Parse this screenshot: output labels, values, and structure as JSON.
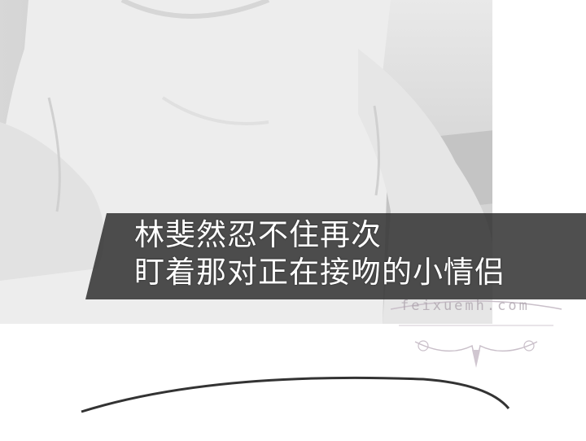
{
  "panel": {
    "caption_lines": [
      "林斐然忍不住再次",
      "盯着那对正在接吻的小情侣"
    ]
  },
  "watermark": {
    "text": "feixuemh.com"
  },
  "colors": {
    "caption_band": "#2a2a2a",
    "caption_text": "#ffffff",
    "watermark": "#b0a4b0"
  }
}
